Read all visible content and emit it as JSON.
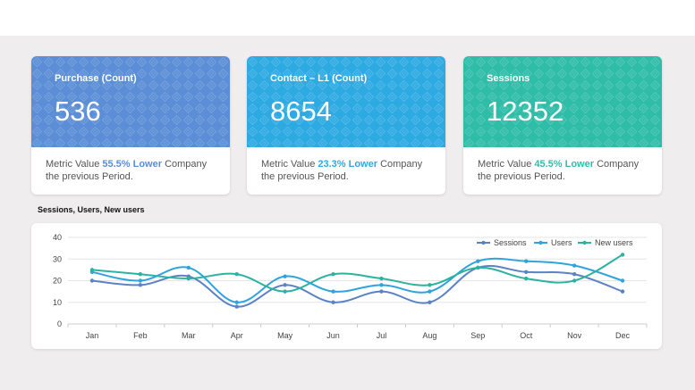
{
  "cards": [
    {
      "title": "Purchase (Count)",
      "value": "536",
      "desc_prefix": "Metric Value ",
      "percent": "55.5% Lower",
      "desc_suffix": " Company the previous Period.",
      "color": "#5b8ed6",
      "accent": "#5b8ed6"
    },
    {
      "title": "Contact – L1 (Count)",
      "value": "8654",
      "desc_prefix": "Metric Value ",
      "percent": "23.3% Lower",
      "desc_suffix": " Company the previous Period.",
      "color": "#2eaae2",
      "accent": "#2eaae2"
    },
    {
      "title": "Sessions",
      "value": "12352",
      "desc_prefix": "Metric Value ",
      "percent": "45.5% Lower",
      "desc_suffix": " Company the previous Period.",
      "color": "#2fbda8",
      "accent": "#2fbda8"
    }
  ],
  "chart_title": "Sessions, Users, New users",
  "chart_data": {
    "type": "line",
    "title": "Sessions, Users, New users",
    "categories": [
      "Jan",
      "Feb",
      "Mar",
      "Apr",
      "May",
      "Jun",
      "Jul",
      "Aug",
      "Sep",
      "Oct",
      "Nov",
      "Dec"
    ],
    "ylim": [
      0,
      40
    ],
    "yticks": [
      0,
      10,
      20,
      30,
      40
    ],
    "grid": true,
    "legend_position": "top-right",
    "series": [
      {
        "name": "Sessions",
        "color": "#5b82c4",
        "values": [
          20,
          18,
          22,
          8,
          18,
          10,
          15,
          10,
          26,
          24,
          23,
          15
        ]
      },
      {
        "name": "Users",
        "color": "#2ea3dd",
        "values": [
          24,
          20,
          26,
          10,
          22,
          15,
          18,
          15,
          29,
          29,
          27,
          20
        ]
      },
      {
        "name": "New users",
        "color": "#2bb3a0",
        "values": [
          25,
          23,
          21,
          23,
          15,
          23,
          21,
          18,
          26,
          21,
          20,
          32
        ]
      }
    ]
  }
}
